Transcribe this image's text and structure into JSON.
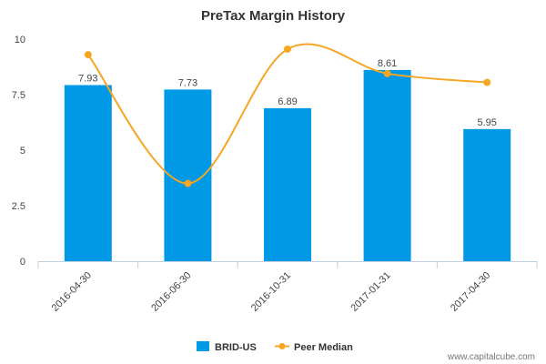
{
  "chart_data": {
    "type": "bar",
    "title": "PreTax Margin History",
    "categories": [
      "2016-04-30",
      "2016-06-30",
      "2016-10-31",
      "2017-01-31",
      "2017-04-30"
    ],
    "series": [
      {
        "name": "BRID-US",
        "kind": "bar",
        "values": [
          7.93,
          7.73,
          6.89,
          8.61,
          5.95
        ],
        "labels": [
          "7.93",
          "7.73",
          "6.89",
          "8.61",
          "5.95"
        ]
      },
      {
        "name": "Peer Median",
        "kind": "line",
        "values": [
          9.3,
          3.5,
          9.55,
          8.45,
          8.05
        ]
      }
    ],
    "ylim": [
      0,
      10
    ],
    "yticks": [
      0,
      2.5,
      5,
      7.5,
      10
    ],
    "ytick_labels": [
      "0",
      "2.5",
      "5",
      "7.5",
      "10"
    ],
    "xlabel": "",
    "ylabel": "",
    "legend_position": "bottom-center",
    "colors": {
      "bar": "#0099e6",
      "line": "#f5a623",
      "axis": "#c0d0e0"
    }
  },
  "credit": "www.capitalcube.com"
}
